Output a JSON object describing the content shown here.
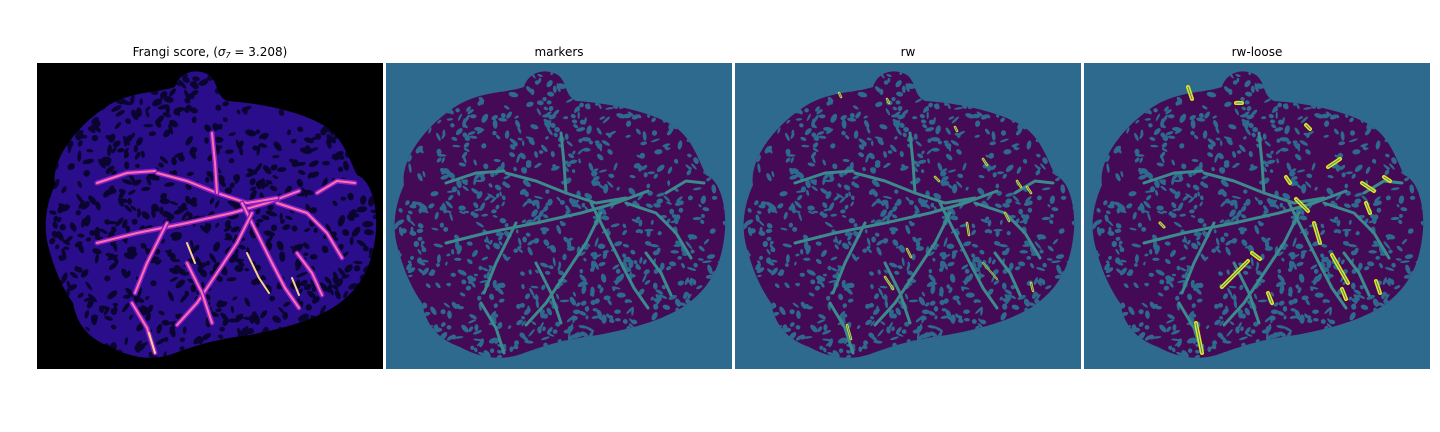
{
  "panels": [
    {
      "id": "frangi",
      "title_prefix": "Frangi score, (",
      "title_symbol": "σ",
      "title_subscript": "7",
      "title_suffix": " = 3.208)",
      "background": "#000000",
      "colormap": "magma/plasma-like"
    },
    {
      "id": "markers",
      "title": "markers",
      "background": "#2e6a8d"
    },
    {
      "id": "rw",
      "title": "rw",
      "background": "#2e6a8d"
    },
    {
      "id": "rw-loose",
      "title": "rw-loose",
      "background": "#2e6a8d"
    }
  ],
  "colors": {
    "frangi_bg": "#000000",
    "frangi_tissue": "#2a0d8a",
    "frangi_dark": "#0a0530",
    "frangi_vessel_mid": "#8a1fc2",
    "frangi_vessel_hot": "#ff6fb0",
    "frangi_vessel_peak": "#ffd08a",
    "label_background": "#2e6a8d",
    "label_tissue": "#450a56",
    "label_vessel": "#3b8a8c",
    "label_segment": "#e8e51a"
  }
}
